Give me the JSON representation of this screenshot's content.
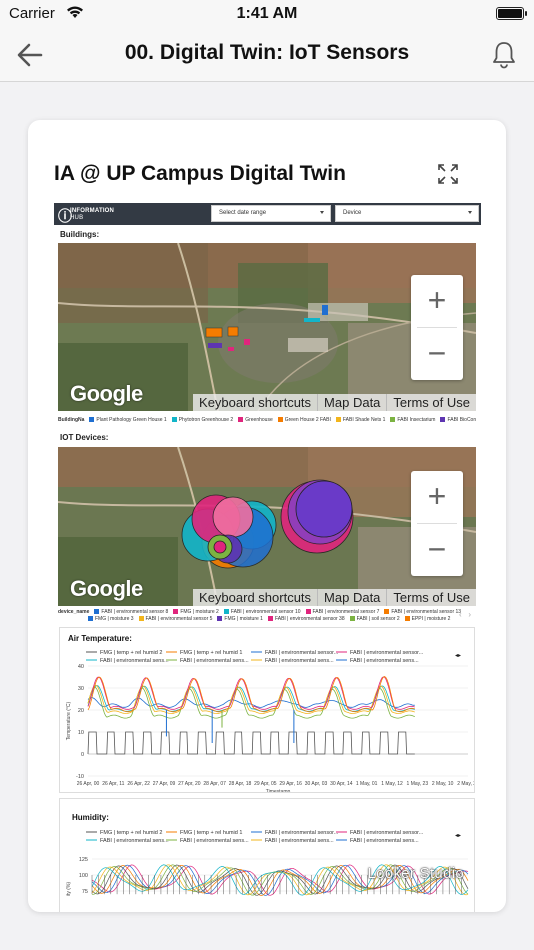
{
  "status": {
    "carrier": "Carrier",
    "time": "1:41 AM"
  },
  "nav": {
    "title": "00. Digital Twin: IoT Sensors"
  },
  "card": {
    "title": "IA @ UP Campus Digital Twin"
  },
  "report": {
    "logo_line1": "INFORMATION",
    "logo_line2": "HUB",
    "date_placeholder": "Select date range",
    "device_placeholder": "Device",
    "buildings_label": "Buildings:",
    "iot_label": "IOT Devices:"
  },
  "map": {
    "google": "Google",
    "keyboard": "Keyboard shortcuts",
    "map_data": "Map Data",
    "terms": "Terms of Use",
    "zoom_in": "+",
    "zoom_out": "−"
  },
  "buildings_legend": {
    "key": "BuildingNa",
    "items": [
      {
        "label": "Plant Pathology Green House 1",
        "color": "#1f6fd1"
      },
      {
        "label": "Phytotron Greenhouse 2",
        "color": "#12b5c9"
      },
      {
        "label": "Greenhouse",
        "color": "#e0257d"
      },
      {
        "label": "Green House 2 FABI",
        "color": "#f57c00"
      },
      {
        "label": "FABI Shade Nets 1",
        "color": "#f2b51c"
      },
      {
        "label": "FABI Insectarium",
        "color": "#7cb342"
      },
      {
        "label": "FABI BioControl Centre",
        "color": "#5e35b1"
      }
    ]
  },
  "devices_legend": {
    "key": "device_name",
    "row1": [
      {
        "label": "FABI | environmental sensor 8",
        "color": "#1f6fd1"
      },
      {
        "label": "FMG | moisture 2",
        "color": "#e0257d"
      },
      {
        "label": "FABI | environmental sensor 10",
        "color": "#12b5c9"
      },
      {
        "label": "FABI | environmental sensor 7",
        "color": "#e0257d"
      },
      {
        "label": "FABI | environmental sensor 13",
        "color": "#f57c00"
      }
    ],
    "row2": [
      {
        "label": "FMG | moisture 3",
        "color": "#1f6fd1"
      },
      {
        "label": "FABI | environmental sensor 5",
        "color": "#f2b51c"
      },
      {
        "label": "FMG | moisture 1",
        "color": "#5e35b1"
      },
      {
        "label": "FABI | environmental sensor 38",
        "color": "#e0257d"
      },
      {
        "label": "FABI | soil sensor 2",
        "color": "#7cb342"
      },
      {
        "label": "EPPI | moisture 2",
        "color": "#f57c00"
      }
    ]
  },
  "air_chart": {
    "title": "Air Temperature:",
    "legend_top": [
      "FMG | temp + rel humid 2",
      "FMG | temp + rel humid 1",
      "FABI | environmental sensor...",
      "FABI | environmental sensor..."
    ],
    "legend_bottom": [
      "FABI | environmental sens...",
      "FABI | environmental sens...",
      "FABI | environmental sens...",
      "FABI | environmental sens..."
    ],
    "legend_colors_top": [
      "#555555",
      "#f57c00",
      "#1f6fd1",
      "#e0257d"
    ],
    "legend_colors_bottom": [
      "#12b5c9",
      "#7cb342",
      "#f2b51c",
      "#1f6fd1"
    ],
    "ylabel": "Temperature (°C)",
    "xlabel": "Timestamp",
    "yticks": [
      "40",
      "30",
      "20",
      "10",
      "0",
      "-10"
    ],
    "xticks": [
      "26 Apr, 00",
      "26 Apr, 11",
      "26 Apr, 22",
      "27 Apr, 09",
      "27 Apr, 20",
      "28 Apr, 07",
      "28 Apr, 18",
      "29 Apr, 05",
      "29 Apr, 16",
      "30 Apr, 03",
      "30 Apr, 14",
      "1 May, 01",
      "1 May, 12",
      "1 May, 23",
      "2 May, 10",
      "2 May, 21"
    ]
  },
  "humidity_chart": {
    "title": "Humidity:",
    "legend_top": [
      "FMG | temp + rel humid 2",
      "FMG | temp + rel humid 1",
      "FABI | environmental sensor...",
      "FABI | environmental sensor..."
    ],
    "legend_bottom": [
      "FABI | environmental sens...",
      "FABI | environmental sens...",
      "FABI | environmental sens...",
      "FABI | environmental sens..."
    ],
    "yticks": [
      "125",
      "100",
      "75"
    ],
    "ylabel": "ity (%)"
  },
  "looker": "Looker Studio"
}
